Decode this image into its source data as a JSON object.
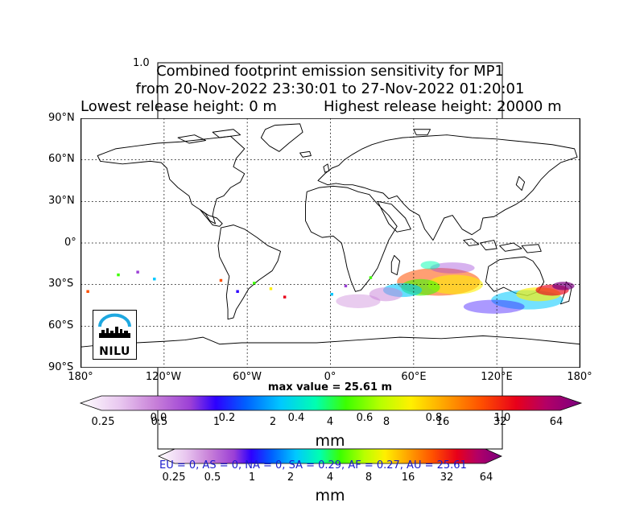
{
  "overlay_axis": {
    "corner_label": "1.0",
    "x_ticks": [
      "0.0",
      "0.2",
      "0.4",
      "0.6",
      "0.8",
      "1.0"
    ]
  },
  "title": {
    "line1": "Combined footprint emission sensitivity for MP1",
    "line2": "from 20-Nov-2022 23:30:01 to 27-Nov-2022 01:20:01",
    "line3_left": "Lowest release height: 0 m",
    "line3_right": "Highest release height: 20000 m"
  },
  "map": {
    "lat_labels": [
      "90°N",
      "60°N",
      "30°N",
      "0°",
      "30°S",
      "60°S",
      "90°S"
    ],
    "lon_labels": [
      "180°",
      "120°W",
      "60°W",
      "0°",
      "60°E",
      "120°E",
      "180°"
    ],
    "max_value_label": "max value = 25.61 m",
    "logo_text": "NILU",
    "colors": {
      "land_outline": "#000000",
      "grid": "#000000",
      "logo_accent": "#1ea8e0"
    }
  },
  "colorbar_main": {
    "ticks": [
      "0.25",
      "0.5",
      "1",
      "2",
      "4",
      "8",
      "16",
      "32",
      "64"
    ],
    "unit": "mm",
    "colors": [
      "#ffffff",
      "#e8c6ef",
      "#c77fd8",
      "#9b3fd6",
      "#2d00ff",
      "#0060ff",
      "#00c8ff",
      "#00ffb0",
      "#3cff00",
      "#b8ff00",
      "#fff000",
      "#ffa000",
      "#ff5000",
      "#e8001a",
      "#b30066",
      "#7a0080"
    ]
  },
  "colorbar_secondary": {
    "ticks": [
      "0.25",
      "0.5",
      "1",
      "2",
      "4",
      "8",
      "16",
      "32",
      "64"
    ],
    "unit": "mm",
    "region_summary": "EU = 0,  AS = 0,  NA = 0,  SA = 0.29,  AF = 0.27,  AU = 25.61"
  }
}
